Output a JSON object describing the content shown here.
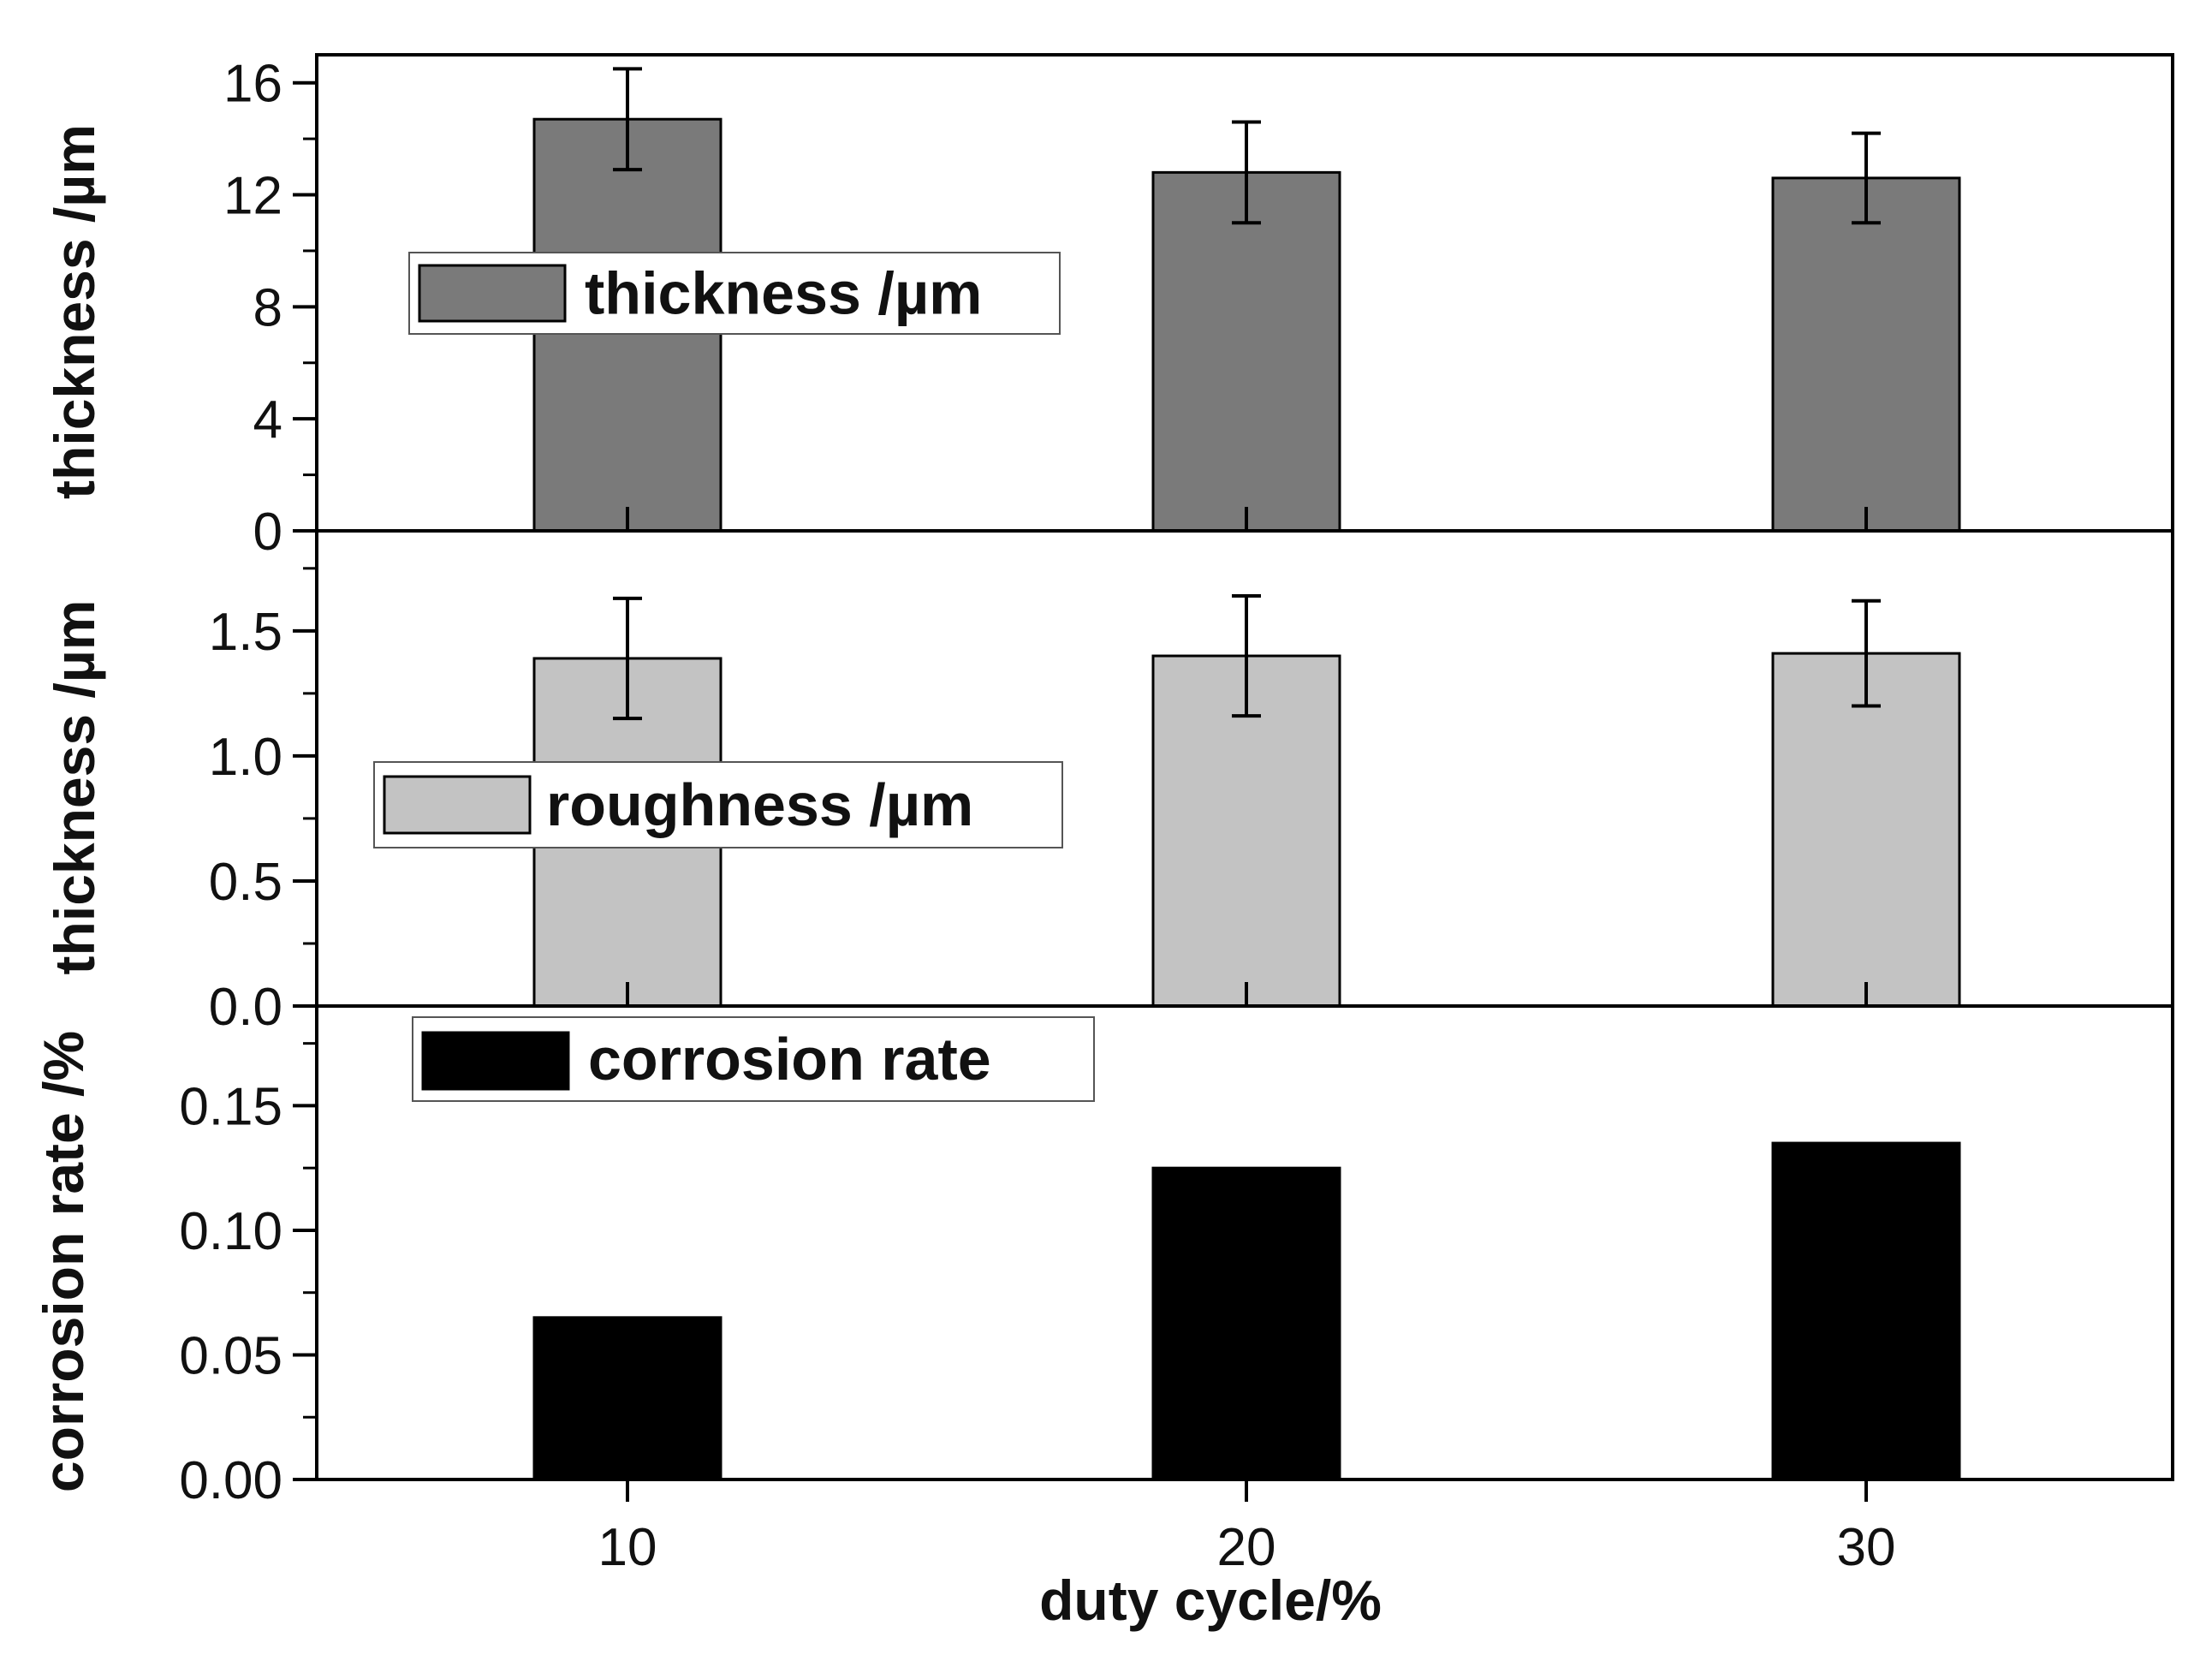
{
  "chart_data": {
    "type": "bar",
    "layout": "stacked-panels-shared-x",
    "xlabel": "duty cycle/%",
    "categories": [
      "10",
      "20",
      "30"
    ],
    "panels": [
      {
        "id": "thickness",
        "ylabel": "thickness /µm",
        "legend": "thickness /µm",
        "legend_position": "upper-left",
        "bar_color": "#7a7a7a",
        "ylim": [
          0,
          17
        ],
        "yticks": [
          "0",
          "4",
          "8",
          "12",
          "16"
        ],
        "ytick_values": [
          0,
          4,
          8,
          12,
          16
        ],
        "minor_step": 2,
        "values": [
          14.7,
          12.8,
          12.6
        ],
        "errors": [
          1.8,
          1.8,
          1.6
        ]
      },
      {
        "id": "roughness",
        "ylabel": "thickness /µm",
        "legend": "roughness /µm",
        "legend_position": "middle-left",
        "bar_color": "#c3c3c3",
        "ylim": [
          0,
          1.9
        ],
        "yticks": [
          "0.0",
          "0.5",
          "1.0",
          "1.5"
        ],
        "ytick_values": [
          0,
          0.5,
          1.0,
          1.5
        ],
        "minor_step": 0.25,
        "values": [
          1.39,
          1.4,
          1.41
        ],
        "errors": [
          0.24,
          0.24,
          0.21
        ]
      },
      {
        "id": "corrosion",
        "ylabel": "corrosion rate /%",
        "legend": "corrosion rate",
        "legend_position": "upper-left",
        "bar_color": "#000000",
        "ylim": [
          0,
          0.19
        ],
        "yticks": [
          "0.00",
          "0.05",
          "0.10",
          "0.15"
        ],
        "ytick_values": [
          0,
          0.05,
          0.1,
          0.15
        ],
        "minor_step": 0.025,
        "values": [
          0.065,
          0.125,
          0.135
        ],
        "errors": null
      }
    ]
  }
}
